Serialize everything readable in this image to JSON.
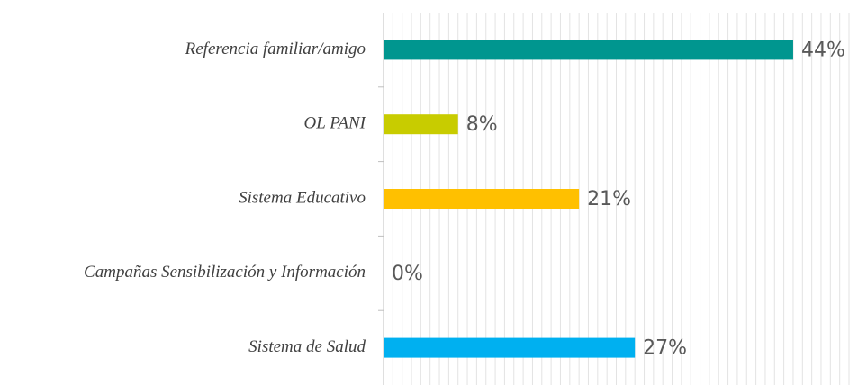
{
  "chart_data": {
    "type": "hbar",
    "categories": [
      "Referencia familiar/amigo",
      "OL PANI",
      "Sistema Educativo",
      "Campañas Sensibilización y Información",
      "Sistema de Salud"
    ],
    "values": [
      44,
      8,
      21,
      0,
      27
    ],
    "value_labels": [
      "44%",
      "8%",
      "21%",
      "0%",
      "27%"
    ],
    "colors": [
      "#00968f",
      "#c8cc00",
      "#ffc000",
      null,
      "#00b0f0"
    ],
    "xlim": [
      0,
      50
    ],
    "xticks": [
      0,
      1,
      2,
      3,
      4,
      5,
      6,
      7,
      8,
      9,
      10,
      11,
      12,
      13,
      14,
      15,
      16,
      17,
      18,
      19,
      20,
      21,
      22,
      23,
      24,
      25,
      26,
      27,
      28,
      29,
      30,
      31,
      32,
      33,
      34,
      35,
      36,
      37,
      38,
      39,
      40,
      41,
      42,
      43,
      44,
      45,
      46,
      47,
      48,
      49,
      50
    ],
    "tick_labels": false,
    "grid": true
  }
}
